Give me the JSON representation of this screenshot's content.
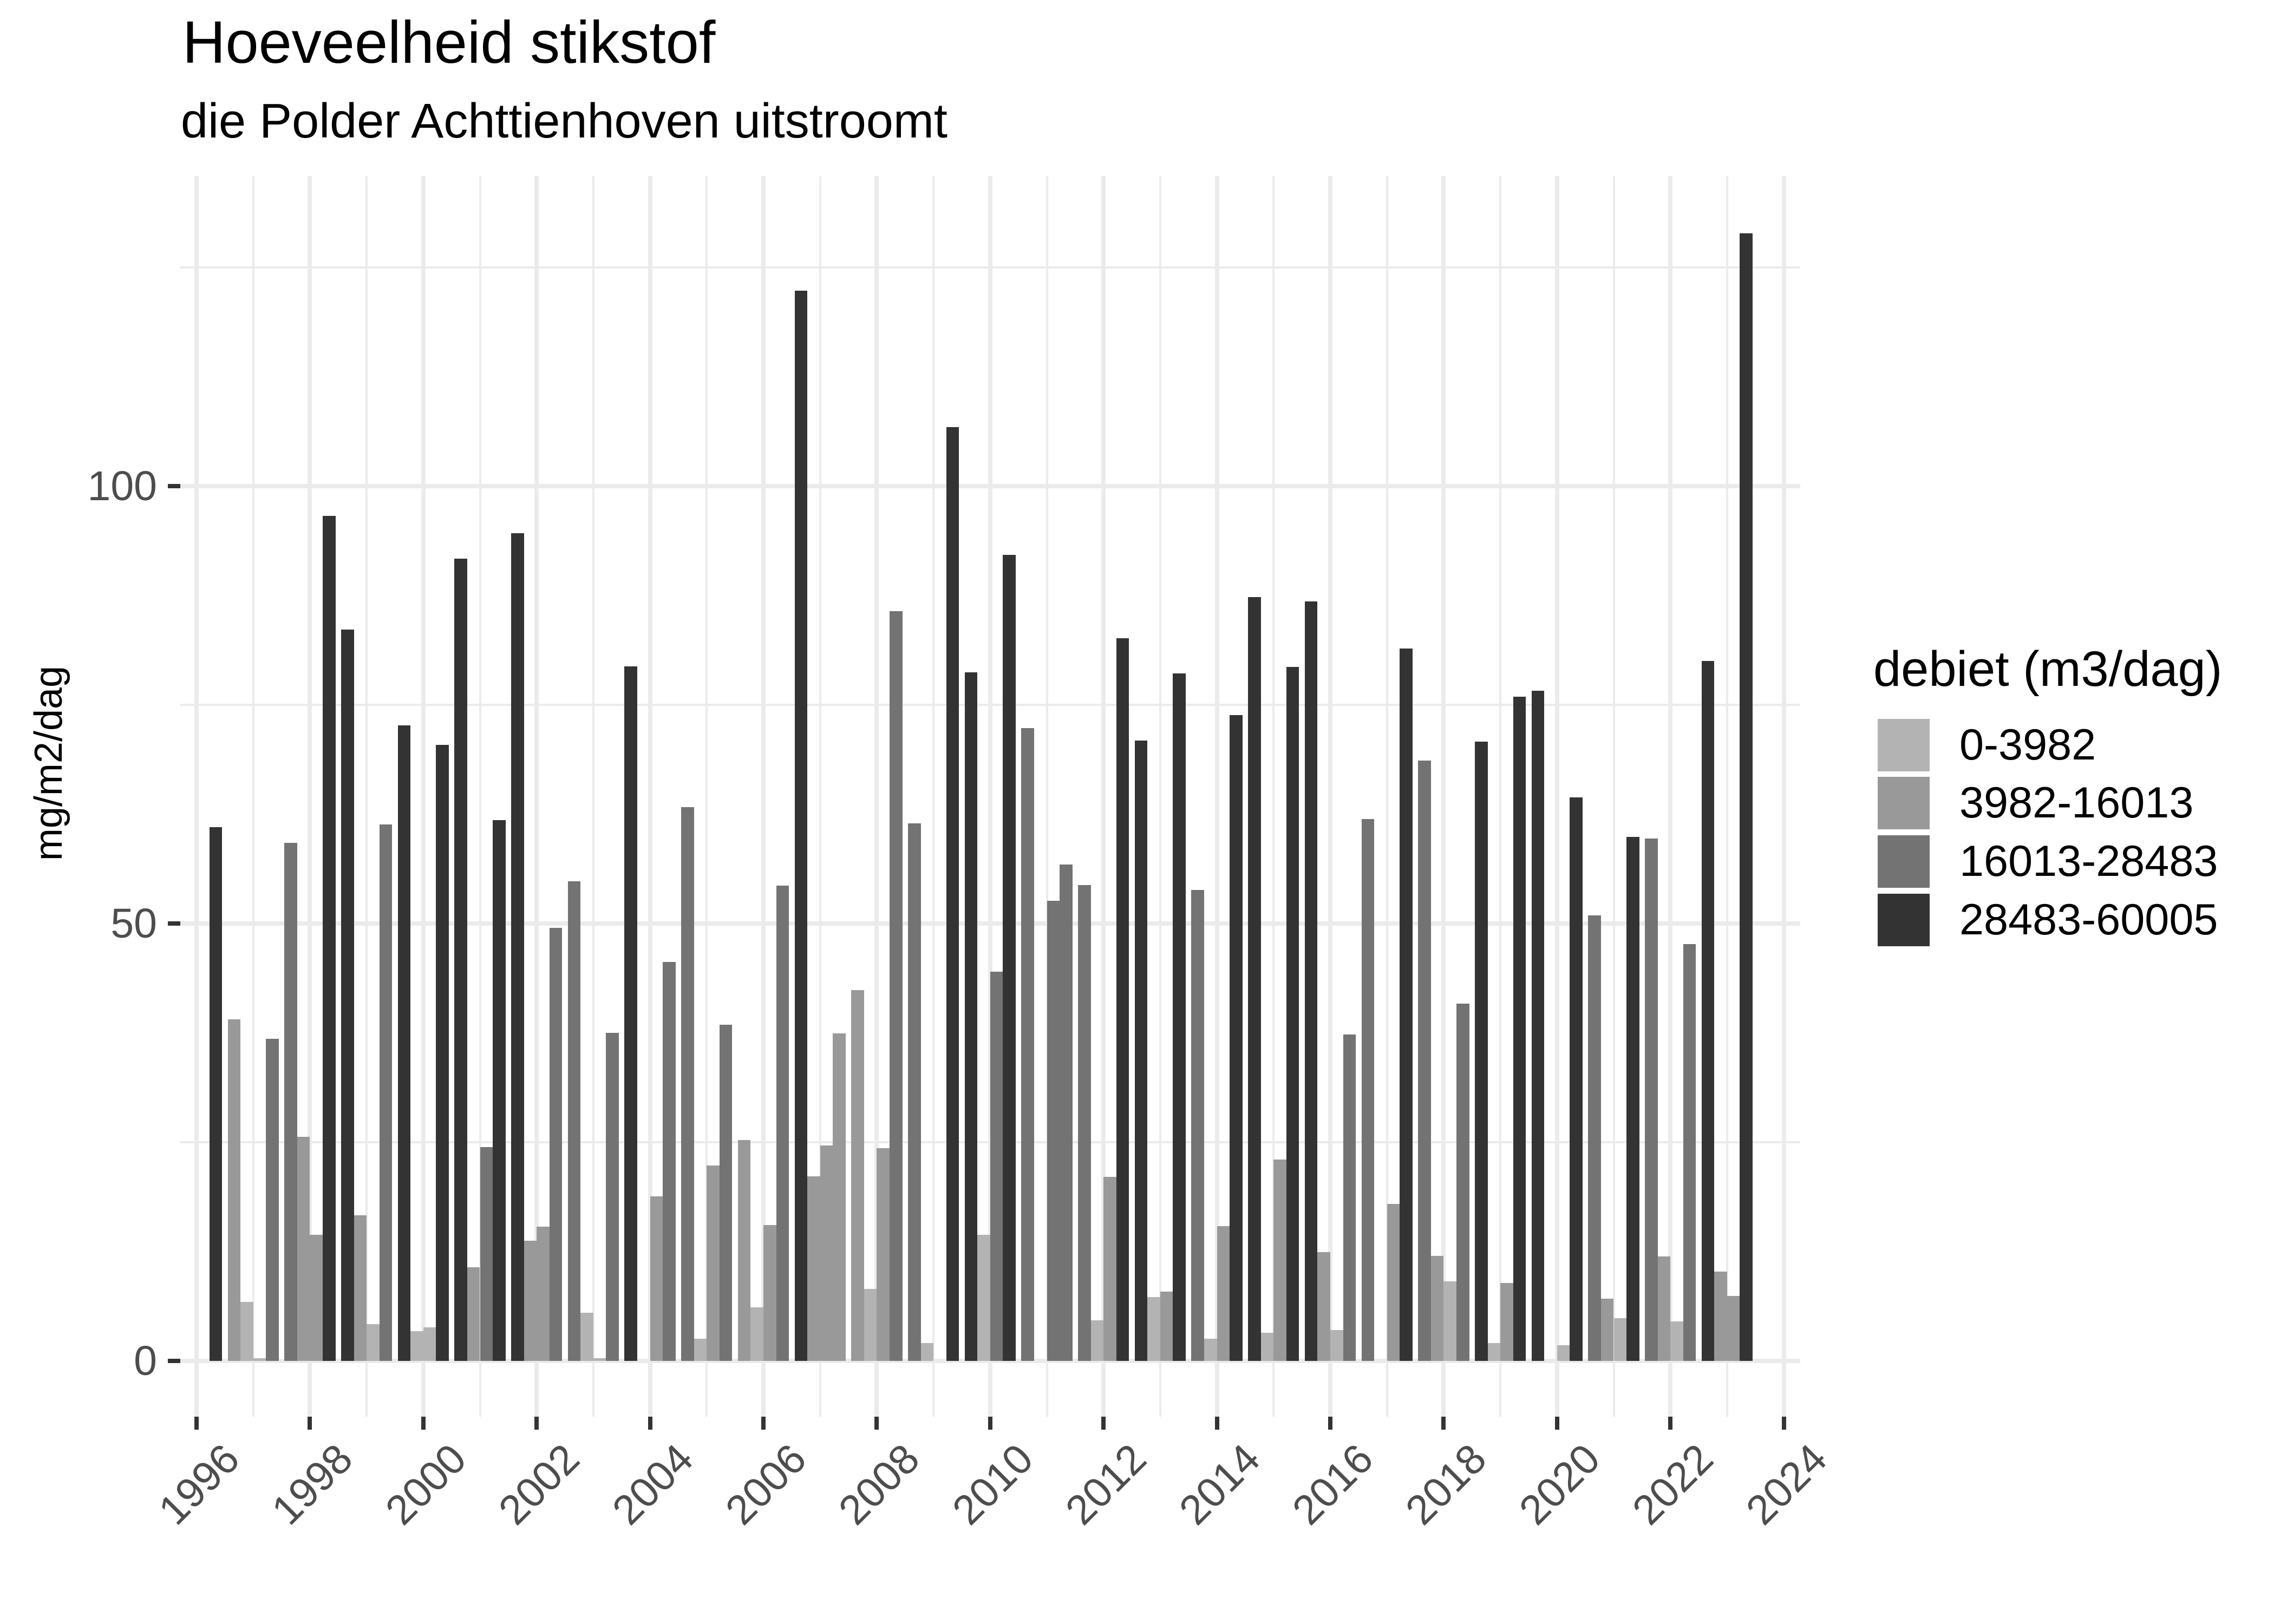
{
  "title": "Hoeveelheid stikstof",
  "subtitle": "die Polder Achttienhoven uitstroomt",
  "y_axis": {
    "title": "mg/m2/dag",
    "ticks": [
      {
        "value": 0,
        "label": "0"
      },
      {
        "value": 50,
        "label": "50"
      },
      {
        "value": 100,
        "label": "100"
      }
    ],
    "minor_ticks": [
      25,
      75,
      125
    ]
  },
  "x_axis": {
    "title": "",
    "ticks": [
      {
        "value": 1996,
        "label": "1996"
      },
      {
        "value": 1998,
        "label": "1998"
      },
      {
        "value": 2000,
        "label": "2000"
      },
      {
        "value": 2002,
        "label": "2002"
      },
      {
        "value": 2004,
        "label": "2004"
      },
      {
        "value": 2006,
        "label": "2006"
      },
      {
        "value": 2008,
        "label": "2008"
      },
      {
        "value": 2010,
        "label": "2010"
      },
      {
        "value": 2012,
        "label": "2012"
      },
      {
        "value": 2014,
        "label": "2014"
      },
      {
        "value": 2016,
        "label": "2016"
      },
      {
        "value": 2018,
        "label": "2018"
      },
      {
        "value": 2020,
        "label": "2020"
      },
      {
        "value": 2022,
        "label": "2022"
      },
      {
        "value": 2024,
        "label": "2024"
      }
    ],
    "minor_ticks": [
      1997,
      1999,
      2001,
      2003,
      2005,
      2007,
      2009,
      2011,
      2013,
      2015,
      2017,
      2019,
      2021,
      2023
    ]
  },
  "legend": {
    "title": "debiet (m3/dag)",
    "items": [
      {
        "label": "0-3982",
        "color": "#B3B3B3"
      },
      {
        "label": "3982-16013",
        "color": "#999999"
      },
      {
        "label": "16013-28483",
        "color": "#737373"
      },
      {
        "label": "28483-60005",
        "color": "#333333"
      }
    ]
  },
  "colors": {
    "background": "#FFFFFF",
    "grid": "#EBEBEB",
    "axis_text": "#4D4D4D",
    "tick": "#333333"
  },
  "chart_data": {
    "type": "bar",
    "title": "Hoeveelheid stikstof",
    "subtitle": "die Polder Achttienhoven uitstroomt",
    "xlabel": "",
    "ylabel": "mg/m2/dag",
    "xlim": [
      1995.71,
      2024.29
    ],
    "ylim": [
      0,
      135
    ],
    "grid": true,
    "legend_position": "right",
    "legend_title": "debiet (m3/dag)",
    "fill_classes": [
      "0-3982",
      "3982-16013",
      "16013-28483",
      "28483-60005"
    ],
    "fill_colors": [
      "#B3B3B3",
      "#999999",
      "#737373",
      "#333333"
    ],
    "layout_note": "4 dodged bars per year (slots 1-4), centered on the year gridline; each bar filled by debiet class index",
    "bars_by_year": [
      {
        "year": 1996,
        "slots": [
          null,
          null,
          null,
          {
            "class": 3,
            "value": 61.0
          }
        ]
      },
      {
        "year": 1997,
        "slots": [
          {
            "class": 1,
            "value": 39.0
          },
          {
            "class": 0,
            "value": 6.7
          },
          {
            "class": 0,
            "value": 0.3
          },
          {
            "class": 2,
            "value": 36.8
          }
        ]
      },
      {
        "year": 1998,
        "slots": [
          {
            "class": 2,
            "value": 59.2
          },
          {
            "class": 1,
            "value": 25.6
          },
          {
            "class": 1,
            "value": 14.4
          },
          {
            "class": 3,
            "value": 96.6
          }
        ]
      },
      {
        "year": 1999,
        "slots": [
          {
            "class": 3,
            "value": 83.6
          },
          {
            "class": 1,
            "value": 16.6
          },
          {
            "class": 0,
            "value": 4.2
          },
          {
            "class": 2,
            "value": 61.3
          }
        ]
      },
      {
        "year": 2000,
        "slots": [
          {
            "class": 3,
            "value": 72.6
          },
          {
            "class": 0,
            "value": 3.4
          },
          {
            "class": 0,
            "value": 3.8
          },
          {
            "class": 3,
            "value": 70.4
          }
        ]
      },
      {
        "year": 2001,
        "slots": [
          {
            "class": 3,
            "value": 91.7
          },
          {
            "class": 1,
            "value": 10.7
          },
          {
            "class": 2,
            "value": 24.4
          },
          {
            "class": 3,
            "value": 61.8
          }
        ]
      },
      {
        "year": 2002,
        "slots": [
          {
            "class": 3,
            "value": 94.6
          },
          {
            "class": 1,
            "value": 13.7
          },
          {
            "class": 1,
            "value": 15.3
          },
          {
            "class": 2,
            "value": 49.5
          }
        ]
      },
      {
        "year": 2003,
        "slots": [
          {
            "class": 2,
            "value": 54.8
          },
          {
            "class": 0,
            "value": 5.5
          },
          {
            "class": 0,
            "value": 0.3
          },
          {
            "class": 2,
            "value": 37.5
          }
        ]
      },
      {
        "year": 2004,
        "slots": [
          {
            "class": 3,
            "value": 79.4
          },
          null,
          {
            "class": 1,
            "value": 18.8
          },
          {
            "class": 2,
            "value": 45.6
          }
        ]
      },
      {
        "year": 2005,
        "slots": [
          {
            "class": 2,
            "value": 63.3
          },
          {
            "class": 0,
            "value": 2.5
          },
          {
            "class": 1,
            "value": 22.3
          },
          {
            "class": 2,
            "value": 38.4
          }
        ]
      },
      {
        "year": 2006,
        "slots": [
          {
            "class": 1,
            "value": 25.2
          },
          {
            "class": 0,
            "value": 6.1
          },
          {
            "class": 1,
            "value": 15.5
          },
          {
            "class": 2,
            "value": 54.3
          }
        ]
      },
      {
        "year": 2007,
        "slots": [
          {
            "class": 3,
            "value": 122.3
          },
          {
            "class": 1,
            "value": 21.1
          },
          {
            "class": 1,
            "value": 24.6
          },
          {
            "class": 1,
            "value": 37.4
          }
        ]
      },
      {
        "year": 2008,
        "slots": [
          {
            "class": 1,
            "value": 42.4
          },
          {
            "class": 0,
            "value": 8.2
          },
          {
            "class": 1,
            "value": 24.3
          },
          {
            "class": 2,
            "value": 85.7
          }
        ]
      },
      {
        "year": 2009,
        "slots": [
          {
            "class": 2,
            "value": 61.4
          },
          {
            "class": 0,
            "value": 2.0
          },
          null,
          {
            "class": 3,
            "value": 106.7
          }
        ]
      },
      {
        "year": 2010,
        "slots": [
          {
            "class": 3,
            "value": 78.7
          },
          {
            "class": 0,
            "value": 14.4
          },
          {
            "class": 2,
            "value": 44.5
          },
          {
            "class": 3,
            "value": 92.1
          }
        ]
      },
      {
        "year": 2011,
        "slots": [
          {
            "class": 2,
            "value": 72.3
          },
          null,
          {
            "class": 2,
            "value": 52.6
          },
          {
            "class": 2,
            "value": 56.7
          }
        ]
      },
      {
        "year": 2012,
        "slots": [
          {
            "class": 2,
            "value": 54.4
          },
          {
            "class": 0,
            "value": 4.6
          },
          {
            "class": 1,
            "value": 21.0
          },
          {
            "class": 3,
            "value": 82.6
          }
        ]
      },
      {
        "year": 2013,
        "slots": [
          {
            "class": 3,
            "value": 70.9
          },
          {
            "class": 0,
            "value": 7.3
          },
          {
            "class": 1,
            "value": 7.9
          },
          {
            "class": 3,
            "value": 78.6
          }
        ]
      },
      {
        "year": 2014,
        "slots": [
          {
            "class": 2,
            "value": 53.8
          },
          {
            "class": 0,
            "value": 2.5
          },
          {
            "class": 1,
            "value": 15.4
          },
          {
            "class": 3,
            "value": 73.8
          }
        ]
      },
      {
        "year": 2015,
        "slots": [
          {
            "class": 3,
            "value": 87.3
          },
          {
            "class": 0,
            "value": 3.2
          },
          {
            "class": 1,
            "value": 23.0
          },
          {
            "class": 3,
            "value": 79.3
          }
        ]
      },
      {
        "year": 2016,
        "slots": [
          {
            "class": 3,
            "value": 86.8
          },
          {
            "class": 1,
            "value": 12.4
          },
          {
            "class": 0,
            "value": 3.5
          },
          {
            "class": 2,
            "value": 37.3
          }
        ]
      },
      {
        "year": 2017,
        "slots": [
          {
            "class": 2,
            "value": 61.9
          },
          null,
          {
            "class": 1,
            "value": 17.9
          },
          {
            "class": 3,
            "value": 81.4
          }
        ]
      },
      {
        "year": 2018,
        "slots": [
          {
            "class": 2,
            "value": 68.6
          },
          {
            "class": 1,
            "value": 12.0
          },
          {
            "class": 0,
            "value": 9.1
          },
          {
            "class": 2,
            "value": 40.8
          }
        ]
      },
      {
        "year": 2019,
        "slots": [
          {
            "class": 3,
            "value": 70.8
          },
          {
            "class": 0,
            "value": 2.0
          },
          {
            "class": 1,
            "value": 8.9
          },
          {
            "class": 3,
            "value": 75.9
          }
        ]
      },
      {
        "year": 2020,
        "slots": [
          {
            "class": 3,
            "value": 76.6
          },
          null,
          {
            "class": 0,
            "value": 1.8
          },
          {
            "class": 3,
            "value": 64.4
          }
        ]
      },
      {
        "year": 2021,
        "slots": [
          {
            "class": 2,
            "value": 50.9
          },
          {
            "class": 1,
            "value": 7.1
          },
          {
            "class": 0,
            "value": 4.9
          },
          {
            "class": 3,
            "value": 59.9
          }
        ]
      },
      {
        "year": 2022,
        "slots": [
          {
            "class": 2,
            "value": 59.7
          },
          {
            "class": 1,
            "value": 11.9
          },
          {
            "class": 0,
            "value": 4.5
          },
          {
            "class": 2,
            "value": 47.6
          }
        ]
      },
      {
        "year": 2023,
        "slots": [
          {
            "class": 3,
            "value": 80.0
          },
          {
            "class": 1,
            "value": 10.2
          },
          {
            "class": 1,
            "value": 7.4
          },
          {
            "class": 3,
            "value": 128.9
          }
        ]
      }
    ]
  }
}
